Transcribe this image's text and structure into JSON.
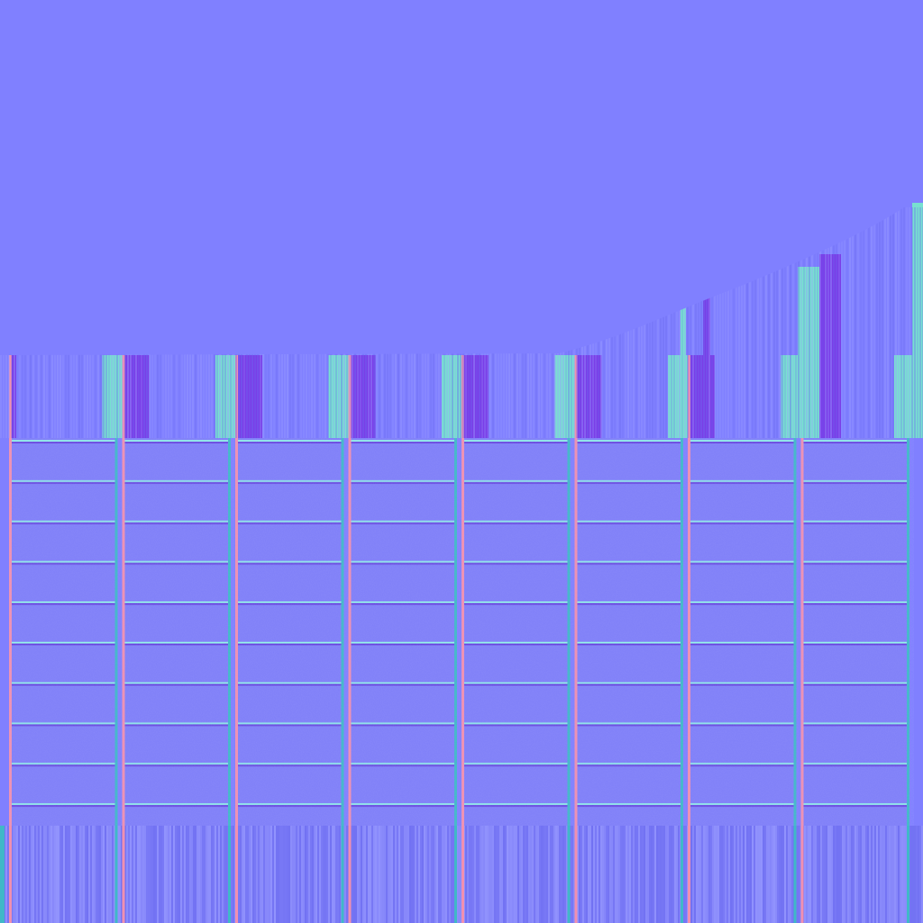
{
  "texture": {
    "kind": "normal-map",
    "base_color": "#8080ff",
    "column_count": 8,
    "row_count": 9,
    "colors": {
      "flat": "#8080ff",
      "panel": "#7f7ff8",
      "highlight_cyan": "#78e0d0",
      "shadow_purple": "#7a3ee8",
      "edge_pink": "#f090b0",
      "edge_teal": "#40b8c8",
      "groove_light": "#90e8e8",
      "groove_dark": "#6a4ae0",
      "streak_light": "#9a9cff",
      "streak_dark": "#6c6cf0"
    }
  }
}
